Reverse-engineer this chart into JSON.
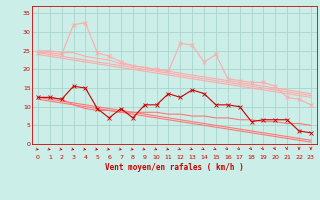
{
  "x": [
    0,
    1,
    2,
    3,
    4,
    5,
    6,
    7,
    8,
    9,
    10,
    11,
    12,
    13,
    14,
    15,
    16,
    17,
    18,
    19,
    20,
    21,
    22,
    23
  ],
  "line1": [
    24.5,
    24.5,
    24.0,
    32.0,
    32.5,
    24.5,
    23.5,
    22.0,
    21.0,
    20.5,
    20.0,
    19.5,
    27.0,
    26.5,
    22.0,
    24.0,
    17.5,
    17.0,
    16.5,
    16.5,
    15.5,
    12.5,
    12.0,
    10.5
  ],
  "line2": [
    25.0,
    25.0,
    24.5,
    24.5,
    23.5,
    23.0,
    22.5,
    21.5,
    21.0,
    20.5,
    20.0,
    19.5,
    19.0,
    18.5,
    18.0,
    17.5,
    17.0,
    16.5,
    16.0,
    15.5,
    15.0,
    14.5,
    14.0,
    13.5
  ],
  "line3": [
    24.5,
    24.0,
    23.5,
    23.0,
    22.5,
    22.0,
    21.5,
    21.0,
    20.5,
    20.0,
    19.5,
    19.0,
    18.5,
    18.0,
    17.5,
    17.0,
    16.5,
    16.0,
    15.5,
    15.0,
    14.5,
    14.0,
    13.5,
    13.0
  ],
  "line4": [
    24.0,
    23.5,
    23.0,
    22.5,
    22.0,
    21.5,
    21.0,
    20.5,
    20.0,
    19.5,
    19.0,
    18.5,
    18.0,
    17.5,
    17.0,
    16.5,
    16.0,
    15.5,
    15.0,
    14.5,
    14.0,
    13.5,
    13.0,
    12.5
  ],
  "line5": [
    12.5,
    12.5,
    12.0,
    15.5,
    15.0,
    9.5,
    7.0,
    9.5,
    7.0,
    10.5,
    10.5,
    13.5,
    12.5,
    14.5,
    13.5,
    10.5,
    10.5,
    10.0,
    6.0,
    6.5,
    6.5,
    6.5,
    3.5,
    3.0
  ],
  "line6": [
    12.5,
    12.5,
    12.0,
    10.5,
    9.5,
    9.0,
    9.0,
    8.5,
    8.5,
    8.5,
    8.5,
    8.0,
    8.0,
    7.5,
    7.5,
    7.0,
    7.0,
    6.5,
    6.5,
    6.0,
    6.0,
    5.5,
    5.5,
    5.0
  ],
  "line7": [
    12.5,
    12.0,
    11.5,
    11.0,
    10.5,
    10.0,
    9.5,
    9.0,
    8.5,
    8.0,
    7.5,
    7.0,
    6.5,
    6.0,
    5.5,
    5.0,
    4.5,
    4.0,
    3.5,
    3.0,
    2.5,
    2.0,
    1.5,
    1.0
  ],
  "line8": [
    12.0,
    11.5,
    11.0,
    10.5,
    10.0,
    9.5,
    9.0,
    8.5,
    8.0,
    7.5,
    7.0,
    6.5,
    6.0,
    5.5,
    5.0,
    4.5,
    4.0,
    3.5,
    3.0,
    2.5,
    2.0,
    1.5,
    1.0,
    0.5
  ],
  "bg_color": "#cceee8",
  "grid_color": "#aad4cc",
  "line_color_light": "#ffaaaa",
  "line_color_mid": "#ff7777",
  "line_color_dark": "#cc0000",
  "xlabel": "Vent moyen/en rafales ( km/h )",
  "ylim": [
    0,
    37
  ],
  "xlim": [
    -0.5,
    23.5
  ],
  "yticks": [
    0,
    5,
    10,
    15,
    20,
    25,
    30,
    35
  ],
  "xticks": [
    0,
    1,
    2,
    3,
    4,
    5,
    6,
    7,
    8,
    9,
    10,
    11,
    12,
    13,
    14,
    15,
    16,
    17,
    18,
    19,
    20,
    21,
    22,
    23
  ]
}
